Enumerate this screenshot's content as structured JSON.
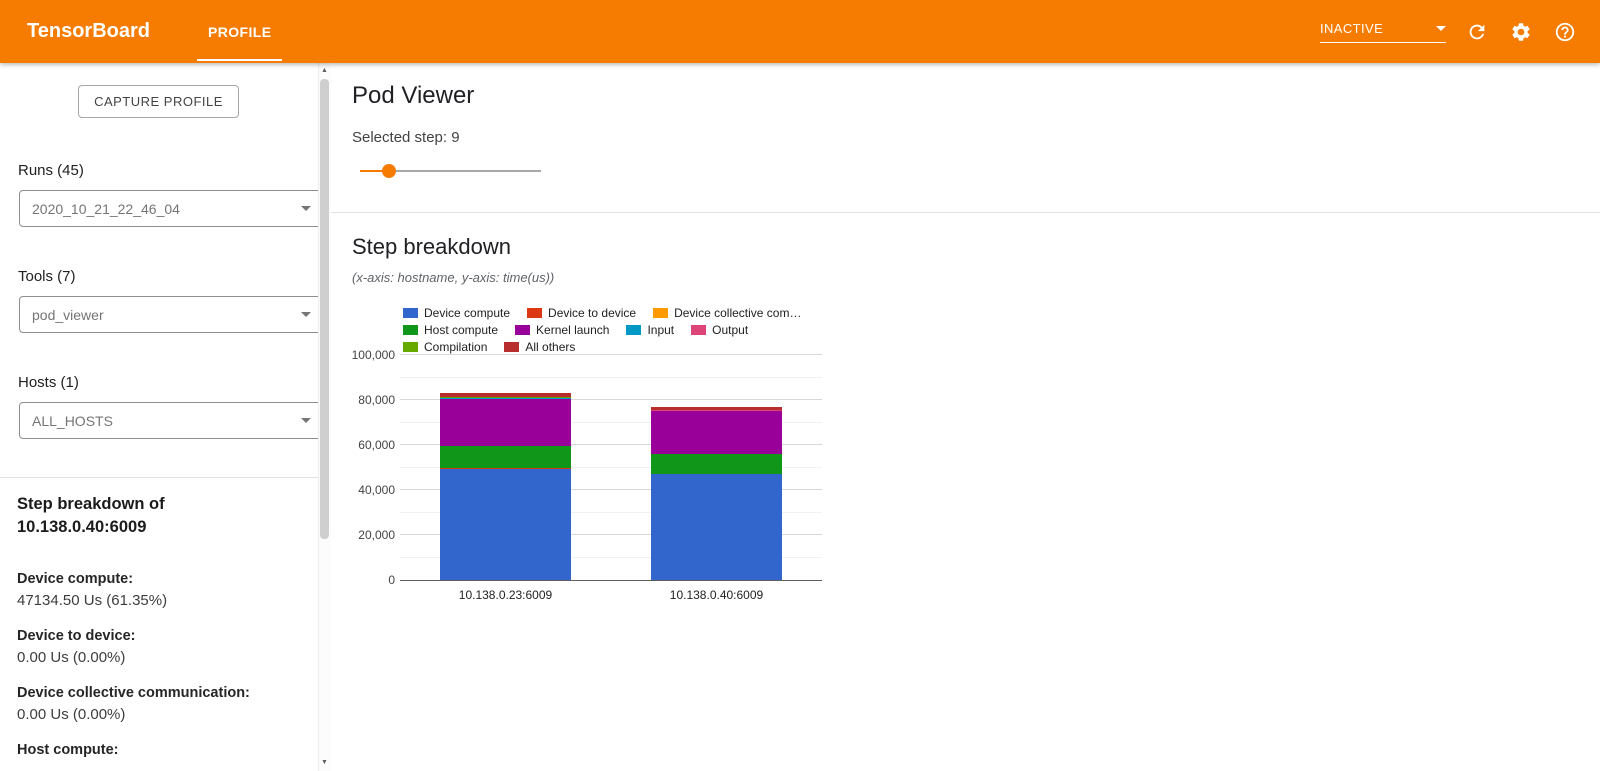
{
  "toolbar": {
    "title": "TensorBoard",
    "tab": "PROFILE",
    "status": "INACTIVE"
  },
  "sidebar": {
    "capture_button": "CAPTURE PROFILE",
    "runs_label": "Runs (45)",
    "runs_value": "2020_10_21_22_46_04",
    "tools_label": "Tools (7)",
    "tools_value": "pod_viewer",
    "hosts_label": "Hosts (1)",
    "hosts_value": "ALL_HOSTS",
    "breakdown_title_line1": "Step breakdown of",
    "breakdown_title_line2": "10.138.0.40:6009",
    "stats": [
      {
        "label": "Device compute:",
        "value": "47134.50 Us (61.35%)"
      },
      {
        "label": "Device to device:",
        "value": "0.00 Us (0.00%)"
      },
      {
        "label": "Device collective communication:",
        "value": "0.00 Us (0.00%)"
      },
      {
        "label": "Host compute:"
      }
    ]
  },
  "main": {
    "title": "Pod Viewer",
    "selected_step_label": "Selected step: 9",
    "section_title": "Step breakdown",
    "section_subtitle": "(x-axis: hostname, y-axis: time(us))"
  },
  "chart_data": {
    "type": "bar",
    "stacked": true,
    "xlabel": "hostname",
    "ylabel": "time(us)",
    "ylim": [
      0,
      100000
    ],
    "y_ticks": [
      "0",
      "20,000",
      "40,000",
      "60,000",
      "80,000",
      "100,000"
    ],
    "categories": [
      "10.138.0.23:6009",
      "10.138.0.40:6009"
    ],
    "series": [
      {
        "name": "Device compute",
        "color": "#3366cc",
        "values": [
          49500,
          47134.5
        ]
      },
      {
        "name": "Device to device",
        "color": "#dc3912",
        "values": [
          200,
          0
        ]
      },
      {
        "name": "Device collective com…",
        "color": "#ff9900",
        "values": [
          0,
          0
        ]
      },
      {
        "name": "Host compute",
        "color": "#109618",
        "values": [
          9800,
          8900
        ]
      },
      {
        "name": "Kernel launch",
        "color": "#990099",
        "values": [
          21000,
          19100
        ]
      },
      {
        "name": "Input",
        "color": "#0099c6",
        "values": [
          200,
          150
        ]
      },
      {
        "name": "Output",
        "color": "#dd4477",
        "values": [
          300,
          250
        ]
      },
      {
        "name": "Compilation",
        "color": "#66aa00",
        "values": [
          250,
          200
        ]
      },
      {
        "name": "All others",
        "color": "#b82e2e",
        "values": [
          1800,
          1100
        ]
      }
    ]
  }
}
